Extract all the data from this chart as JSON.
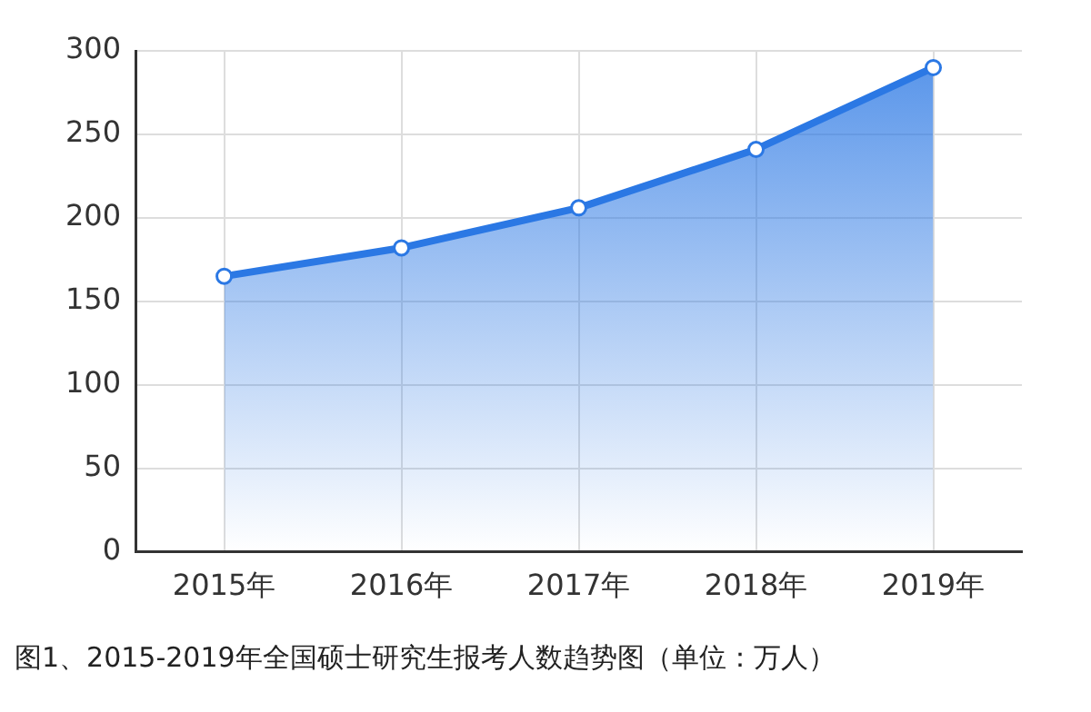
{
  "chart_data": {
    "type": "area",
    "categories": [
      "2015年",
      "2016年",
      "2017年",
      "2018年",
      "2019年"
    ],
    "series": [
      {
        "color": "#2b78e4",
        "values": [
          165,
          182,
          206,
          241,
          290
        ]
      }
    ],
    "ylim": [
      0,
      300
    ],
    "yticks": [
      0,
      50,
      100,
      150,
      200,
      250,
      300
    ],
    "grid": true,
    "marker": "circle",
    "legend": false,
    "annotations": [
      "图1、2015-2019年全国硕士研究生报考人数趋势图（单位：万人）"
    ]
  }
}
